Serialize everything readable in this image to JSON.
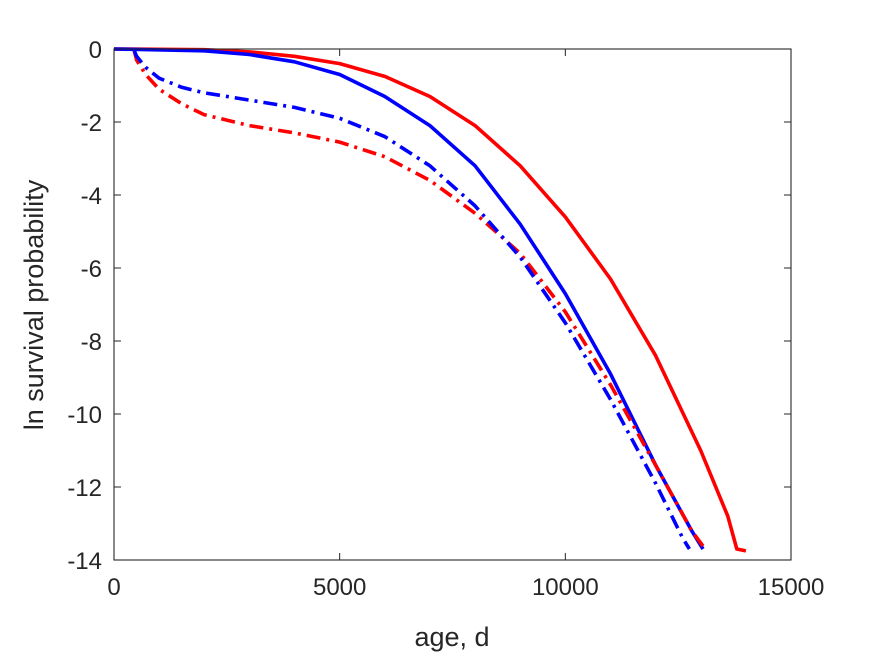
{
  "chart_data": {
    "type": "line",
    "title": "",
    "xlabel": "age, d",
    "ylabel": "ln survival probability",
    "xlim": [
      0,
      15000
    ],
    "ylim": [
      -14,
      0
    ],
    "xticks": [
      0,
      5000,
      10000,
      15000
    ],
    "yticks": [
      0,
      -2,
      -4,
      -6,
      -8,
      -10,
      -12,
      -14
    ],
    "xtick_labels": [
      "0",
      "5000",
      "10000",
      "15000"
    ],
    "ytick_labels": [
      "0",
      "-2",
      "-4",
      "-6",
      "-8",
      "-10",
      "-12",
      "-14"
    ],
    "grid": false,
    "legend": "none",
    "series": [
      {
        "color": "#ff0000",
        "style": "solid",
        "points": [
          [
            0,
            0
          ],
          [
            2000,
            -0.02
          ],
          [
            3000,
            -0.08
          ],
          [
            4000,
            -0.2
          ],
          [
            5000,
            -0.4
          ],
          [
            6000,
            -0.75
          ],
          [
            7000,
            -1.3
          ],
          [
            8000,
            -2.1
          ],
          [
            9000,
            -3.2
          ],
          [
            10000,
            -4.6
          ],
          [
            11000,
            -6.3
          ],
          [
            12000,
            -8.4
          ],
          [
            13000,
            -11.0
          ],
          [
            13600,
            -12.8
          ],
          [
            13800,
            -13.7
          ],
          [
            14000,
            -13.75
          ]
        ]
      },
      {
        "color": "#0000ff",
        "style": "solid",
        "points": [
          [
            0,
            0
          ],
          [
            2000,
            -0.05
          ],
          [
            3000,
            -0.15
          ],
          [
            4000,
            -0.35
          ],
          [
            5000,
            -0.7
          ],
          [
            6000,
            -1.3
          ],
          [
            7000,
            -2.1
          ],
          [
            8000,
            -3.2
          ],
          [
            9000,
            -4.8
          ],
          [
            10000,
            -6.7
          ],
          [
            11000,
            -8.9
          ],
          [
            12000,
            -11.4
          ],
          [
            12800,
            -13.2
          ],
          [
            13050,
            -13.7
          ]
        ]
      },
      {
        "color": "#ff0000",
        "style": "dashdot",
        "points": [
          [
            450,
            -0.05
          ],
          [
            500,
            -0.3
          ],
          [
            700,
            -0.7
          ],
          [
            1000,
            -1.1
          ],
          [
            1500,
            -1.5
          ],
          [
            2000,
            -1.8
          ],
          [
            3000,
            -2.1
          ],
          [
            4000,
            -2.3
          ],
          [
            5000,
            -2.55
          ],
          [
            6000,
            -2.95
          ],
          [
            7000,
            -3.6
          ],
          [
            8000,
            -4.5
          ],
          [
            9000,
            -5.6
          ],
          [
            10000,
            -7.2
          ],
          [
            11000,
            -9.2
          ],
          [
            12000,
            -11.4
          ],
          [
            12800,
            -13.2
          ],
          [
            13100,
            -13.7
          ]
        ]
      },
      {
        "color": "#0000ff",
        "style": "dashdot",
        "points": [
          [
            450,
            -0.05
          ],
          [
            500,
            -0.2
          ],
          [
            700,
            -0.5
          ],
          [
            1000,
            -0.8
          ],
          [
            1500,
            -1.05
          ],
          [
            2000,
            -1.2
          ],
          [
            3000,
            -1.4
          ],
          [
            4000,
            -1.6
          ],
          [
            5000,
            -1.9
          ],
          [
            6000,
            -2.4
          ],
          [
            7000,
            -3.2
          ],
          [
            8000,
            -4.3
          ],
          [
            9000,
            -5.7
          ],
          [
            10000,
            -7.5
          ],
          [
            11000,
            -9.6
          ],
          [
            12000,
            -11.9
          ],
          [
            12600,
            -13.4
          ],
          [
            12750,
            -13.7
          ]
        ]
      }
    ]
  }
}
